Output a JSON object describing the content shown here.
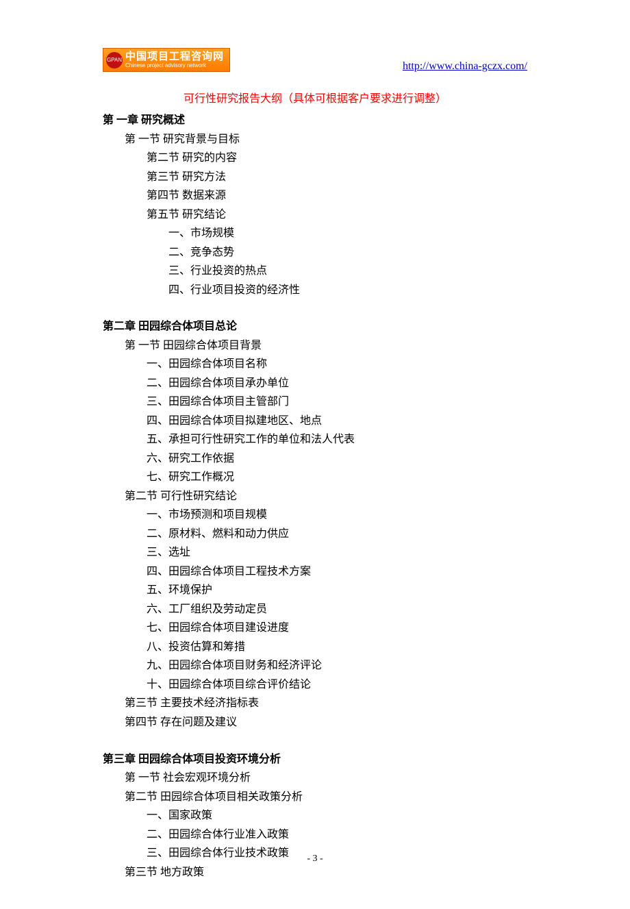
{
  "header": {
    "logo_cn": "中国项目工程咨询网",
    "logo_en": "Chinese project advisory network",
    "logo_badge": "GPAN",
    "url": "http://www.china-gczx.com/",
    "logo_bg_color": "#ff8c00",
    "logo_circle_color": "#c01010"
  },
  "title_note": "可行性研究报告大纲（具体可根据客户要求进行调整）",
  "title_color": "#ff0000",
  "body_font_size": 16,
  "chapters": {
    "ch1": {
      "heading": "第 一章  研究概述",
      "s1": "第 一节  研究背景与目标",
      "s2": "第二节  研究的内容",
      "s3": "第三节  研究方法",
      "s4": "第四节  数据来源",
      "s5": "第五节  研究结论",
      "s5_items": {
        "i1": "一、市场规模",
        "i2": "二、竞争态势",
        "i3": "三、行业投资的热点",
        "i4": "四、行业项目投资的经济性"
      }
    },
    "ch2": {
      "heading": "第二章  田园综合体项目总论",
      "s1": "第 一节  田园综合体项目背景",
      "s1_items": {
        "i1": "一、田园综合体项目名称",
        "i2": "二、田园综合体项目承办单位",
        "i3": "三、田园综合体项目主管部门",
        "i4": "四、田园综合体项目拟建地区、地点",
        "i5": "五、承担可行性研究工作的单位和法人代表",
        "i6": "六、研究工作依据",
        "i7": "七、研究工作概况"
      },
      "s2": "第二节   可行性研究结论",
      "s2_items": {
        "i1": "一、市场预测和项目规模",
        "i2": "二、原材料、燃料和动力供应",
        "i3": "三、选址",
        "i4": "四、田园综合体项目工程技术方案",
        "i5": "五、环境保护",
        "i6": "六、工厂组织及劳动定员",
        "i7": "七、田园综合体项目建设进度",
        "i8": "八、投资估算和筹措",
        "i9": "九、田园综合体项目财务和经济评论",
        "i10": "十、田园综合体项目综合评价结论"
      },
      "s3": "第三节   主要技术经济指标表",
      "s4": "第四节   存在问题及建议"
    },
    "ch3": {
      "heading": "第三章  田园综合体项目投资环境分析",
      "s1": "第 一节   社会宏观环境分析",
      "s2": "第二节  田园综合体项目相关政策分析",
      "s2_items": {
        "i1": "一、国家政策",
        "i2": "二、田园综合体行业准入政策",
        "i3": "三、田园综合体行业技术政策"
      },
      "s3": "第三节   地方政策"
    }
  },
  "page_number": "- 3 -"
}
